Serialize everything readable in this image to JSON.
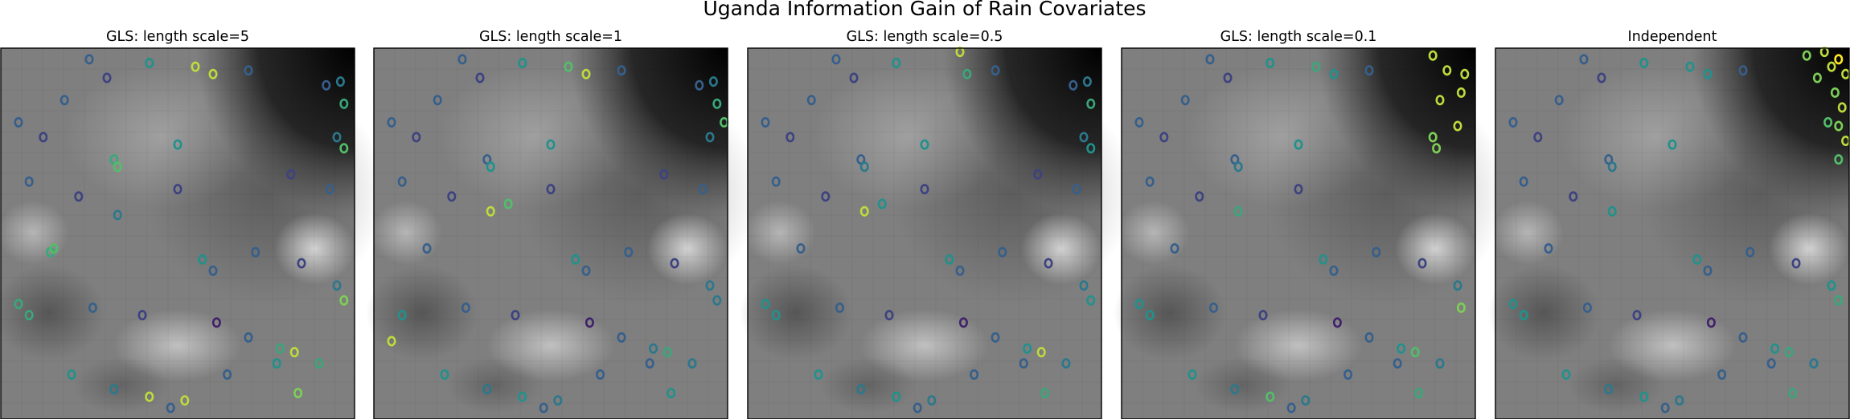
{
  "figure": {
    "title": "Uganda Information Gain of Rain Covariates"
  },
  "colormap": {
    "name": "viridis",
    "stops": [
      "#440154",
      "#3b528b",
      "#21918c",
      "#5ec962",
      "#fde725"
    ]
  },
  "chart_data": [
    {
      "type": "scatter",
      "title": "GLS: length scale=5",
      "background": "grayscale rain covariate map",
      "grid": false,
      "xlim": [
        0,
        1
      ],
      "ylim": [
        0,
        1
      ],
      "points": [
        [
          0.25,
          0.97,
          0.3
        ],
        [
          0.42,
          0.96,
          0.5
        ],
        [
          0.55,
          0.95,
          0.9
        ],
        [
          0.6,
          0.93,
          0.9
        ],
        [
          0.3,
          0.92,
          0.2
        ],
        [
          0.7,
          0.94,
          0.3
        ],
        [
          0.92,
          0.9,
          0.3
        ],
        [
          0.96,
          0.91,
          0.4
        ],
        [
          0.97,
          0.85,
          0.6
        ],
        [
          0.95,
          0.76,
          0.4
        ],
        [
          0.97,
          0.73,
          0.7
        ],
        [
          0.93,
          0.62,
          0.3
        ],
        [
          0.05,
          0.8,
          0.3
        ],
        [
          0.12,
          0.76,
          0.2
        ],
        [
          0.32,
          0.7,
          0.6
        ],
        [
          0.33,
          0.68,
          0.7
        ],
        [
          0.5,
          0.74,
          0.5
        ],
        [
          0.08,
          0.64,
          0.3
        ],
        [
          0.22,
          0.6,
          0.2
        ],
        [
          0.33,
          0.55,
          0.4
        ],
        [
          0.14,
          0.45,
          0.6
        ],
        [
          0.15,
          0.46,
          0.7
        ],
        [
          0.57,
          0.43,
          0.5
        ],
        [
          0.6,
          0.4,
          0.3
        ],
        [
          0.72,
          0.45,
          0.3
        ],
        [
          0.85,
          0.42,
          0.2
        ],
        [
          0.95,
          0.36,
          0.4
        ],
        [
          0.97,
          0.32,
          0.8
        ],
        [
          0.05,
          0.31,
          0.6
        ],
        [
          0.08,
          0.28,
          0.6
        ],
        [
          0.26,
          0.3,
          0.3
        ],
        [
          0.4,
          0.28,
          0.2
        ],
        [
          0.61,
          0.26,
          0.1
        ],
        [
          0.7,
          0.22,
          0.3
        ],
        [
          0.79,
          0.19,
          0.6
        ],
        [
          0.83,
          0.18,
          0.9
        ],
        [
          0.78,
          0.15,
          0.5
        ],
        [
          0.2,
          0.12,
          0.5
        ],
        [
          0.32,
          0.08,
          0.4
        ],
        [
          0.42,
          0.06,
          0.9
        ],
        [
          0.52,
          0.05,
          0.9
        ],
        [
          0.48,
          0.03,
          0.3
        ],
        [
          0.84,
          0.07,
          0.8
        ],
        [
          0.64,
          0.12,
          0.3
        ],
        [
          0.9,
          0.15,
          0.6
        ],
        [
          0.18,
          0.86,
          0.3
        ],
        [
          0.82,
          0.66,
          0.2
        ],
        [
          0.5,
          0.62,
          0.2
        ]
      ]
    },
    {
      "type": "scatter",
      "title": "GLS: length scale=1",
      "background": "grayscale rain covariate map",
      "grid": false,
      "xlim": [
        0,
        1
      ],
      "ylim": [
        0,
        1
      ],
      "points": [
        [
          0.25,
          0.97,
          0.3
        ],
        [
          0.42,
          0.96,
          0.5
        ],
        [
          0.55,
          0.95,
          0.7
        ],
        [
          0.6,
          0.93,
          0.9
        ],
        [
          0.3,
          0.92,
          0.2
        ],
        [
          0.7,
          0.94,
          0.3
        ],
        [
          0.92,
          0.9,
          0.3
        ],
        [
          0.96,
          0.91,
          0.4
        ],
        [
          0.97,
          0.85,
          0.6
        ],
        [
          0.95,
          0.76,
          0.4
        ],
        [
          0.99,
          0.8,
          0.7
        ],
        [
          0.93,
          0.62,
          0.3
        ],
        [
          0.05,
          0.8,
          0.3
        ],
        [
          0.12,
          0.76,
          0.2
        ],
        [
          0.32,
          0.7,
          0.3
        ],
        [
          0.33,
          0.68,
          0.5
        ],
        [
          0.5,
          0.74,
          0.5
        ],
        [
          0.08,
          0.64,
          0.3
        ],
        [
          0.22,
          0.6,
          0.2
        ],
        [
          0.33,
          0.56,
          0.9
        ],
        [
          0.38,
          0.58,
          0.7
        ],
        [
          0.15,
          0.46,
          0.3
        ],
        [
          0.57,
          0.43,
          0.5
        ],
        [
          0.6,
          0.4,
          0.3
        ],
        [
          0.72,
          0.45,
          0.3
        ],
        [
          0.85,
          0.42,
          0.2
        ],
        [
          0.95,
          0.36,
          0.4
        ],
        [
          0.97,
          0.32,
          0.4
        ],
        [
          0.05,
          0.21,
          0.9
        ],
        [
          0.08,
          0.28,
          0.5
        ],
        [
          0.26,
          0.3,
          0.3
        ],
        [
          0.4,
          0.28,
          0.2
        ],
        [
          0.61,
          0.26,
          0.1
        ],
        [
          0.7,
          0.22,
          0.3
        ],
        [
          0.79,
          0.19,
          0.4
        ],
        [
          0.83,
          0.18,
          0.6
        ],
        [
          0.78,
          0.15,
          0.3
        ],
        [
          0.2,
          0.12,
          0.5
        ],
        [
          0.32,
          0.08,
          0.4
        ],
        [
          0.42,
          0.06,
          0.5
        ],
        [
          0.52,
          0.05,
          0.4
        ],
        [
          0.48,
          0.03,
          0.3
        ],
        [
          0.84,
          0.07,
          0.5
        ],
        [
          0.64,
          0.12,
          0.3
        ],
        [
          0.9,
          0.15,
          0.4
        ],
        [
          0.18,
          0.86,
          0.3
        ],
        [
          0.82,
          0.66,
          0.2
        ],
        [
          0.5,
          0.62,
          0.2
        ]
      ]
    },
    {
      "type": "scatter",
      "title": "GLS: length scale=0.5",
      "background": "grayscale rain covariate map",
      "grid": false,
      "xlim": [
        0,
        1
      ],
      "ylim": [
        0,
        1
      ],
      "points": [
        [
          0.25,
          0.97,
          0.3
        ],
        [
          0.42,
          0.96,
          0.5
        ],
        [
          0.6,
          0.99,
          0.9
        ],
        [
          0.62,
          0.93,
          0.6
        ],
        [
          0.3,
          0.92,
          0.2
        ],
        [
          0.7,
          0.94,
          0.3
        ],
        [
          0.92,
          0.9,
          0.3
        ],
        [
          0.96,
          0.91,
          0.4
        ],
        [
          0.97,
          0.85,
          0.6
        ],
        [
          0.95,
          0.76,
          0.4
        ],
        [
          0.97,
          0.73,
          0.5
        ],
        [
          0.93,
          0.62,
          0.3
        ],
        [
          0.05,
          0.8,
          0.3
        ],
        [
          0.12,
          0.76,
          0.2
        ],
        [
          0.32,
          0.7,
          0.3
        ],
        [
          0.33,
          0.68,
          0.4
        ],
        [
          0.5,
          0.74,
          0.5
        ],
        [
          0.08,
          0.64,
          0.3
        ],
        [
          0.22,
          0.6,
          0.2
        ],
        [
          0.33,
          0.56,
          0.9
        ],
        [
          0.38,
          0.58,
          0.5
        ],
        [
          0.15,
          0.46,
          0.3
        ],
        [
          0.57,
          0.43,
          0.5
        ],
        [
          0.6,
          0.4,
          0.3
        ],
        [
          0.72,
          0.45,
          0.3
        ],
        [
          0.85,
          0.42,
          0.2
        ],
        [
          0.95,
          0.36,
          0.4
        ],
        [
          0.97,
          0.32,
          0.5
        ],
        [
          0.05,
          0.31,
          0.5
        ],
        [
          0.08,
          0.28,
          0.5
        ],
        [
          0.26,
          0.3,
          0.3
        ],
        [
          0.4,
          0.28,
          0.2
        ],
        [
          0.61,
          0.26,
          0.1
        ],
        [
          0.7,
          0.22,
          0.3
        ],
        [
          0.79,
          0.19,
          0.5
        ],
        [
          0.83,
          0.18,
          0.9
        ],
        [
          0.78,
          0.15,
          0.3
        ],
        [
          0.2,
          0.12,
          0.5
        ],
        [
          0.32,
          0.08,
          0.4
        ],
        [
          0.42,
          0.06,
          0.5
        ],
        [
          0.52,
          0.05,
          0.4
        ],
        [
          0.48,
          0.03,
          0.3
        ],
        [
          0.84,
          0.07,
          0.6
        ],
        [
          0.64,
          0.12,
          0.3
        ],
        [
          0.9,
          0.15,
          0.4
        ],
        [
          0.18,
          0.86,
          0.3
        ],
        [
          0.82,
          0.66,
          0.2
        ],
        [
          0.5,
          0.62,
          0.2
        ]
      ]
    },
    {
      "type": "scatter",
      "title": "GLS: length scale=0.1",
      "background": "grayscale rain covariate map",
      "grid": false,
      "xlim": [
        0,
        1
      ],
      "ylim": [
        0,
        1
      ],
      "points": [
        [
          0.25,
          0.97,
          0.3
        ],
        [
          0.42,
          0.96,
          0.5
        ],
        [
          0.55,
          0.95,
          0.6
        ],
        [
          0.6,
          0.93,
          0.5
        ],
        [
          0.3,
          0.92,
          0.2
        ],
        [
          0.7,
          0.94,
          0.3
        ],
        [
          0.88,
          0.98,
          0.9
        ],
        [
          0.92,
          0.94,
          0.9
        ],
        [
          0.97,
          0.93,
          0.9
        ],
        [
          0.9,
          0.86,
          0.9
        ],
        [
          0.96,
          0.88,
          0.9
        ],
        [
          0.95,
          0.79,
          0.9
        ],
        [
          0.88,
          0.76,
          0.8
        ],
        [
          0.89,
          0.73,
          0.8
        ],
        [
          0.05,
          0.8,
          0.3
        ],
        [
          0.12,
          0.76,
          0.2
        ],
        [
          0.32,
          0.7,
          0.3
        ],
        [
          0.33,
          0.68,
          0.4
        ],
        [
          0.5,
          0.74,
          0.5
        ],
        [
          0.08,
          0.64,
          0.3
        ],
        [
          0.22,
          0.6,
          0.2
        ],
        [
          0.33,
          0.56,
          0.6
        ],
        [
          0.15,
          0.46,
          0.3
        ],
        [
          0.57,
          0.43,
          0.5
        ],
        [
          0.6,
          0.4,
          0.3
        ],
        [
          0.72,
          0.45,
          0.3
        ],
        [
          0.85,
          0.42,
          0.2
        ],
        [
          0.95,
          0.36,
          0.4
        ],
        [
          0.96,
          0.3,
          0.8
        ],
        [
          0.05,
          0.31,
          0.5
        ],
        [
          0.08,
          0.28,
          0.5
        ],
        [
          0.26,
          0.3,
          0.3
        ],
        [
          0.4,
          0.28,
          0.2
        ],
        [
          0.61,
          0.26,
          0.1
        ],
        [
          0.7,
          0.22,
          0.3
        ],
        [
          0.79,
          0.19,
          0.5
        ],
        [
          0.83,
          0.18,
          0.7
        ],
        [
          0.78,
          0.15,
          0.3
        ],
        [
          0.2,
          0.12,
          0.5
        ],
        [
          0.32,
          0.08,
          0.4
        ],
        [
          0.42,
          0.06,
          0.7
        ],
        [
          0.52,
          0.05,
          0.4
        ],
        [
          0.48,
          0.03,
          0.3
        ],
        [
          0.84,
          0.07,
          0.6
        ],
        [
          0.64,
          0.12,
          0.3
        ],
        [
          0.9,
          0.15,
          0.4
        ],
        [
          0.18,
          0.86,
          0.3
        ],
        [
          0.5,
          0.62,
          0.2
        ]
      ]
    },
    {
      "type": "scatter",
      "title": "Independent",
      "background": "grayscale rain covariate map",
      "grid": false,
      "xlim": [
        0,
        1
      ],
      "ylim": [
        0,
        1
      ],
      "points": [
        [
          0.25,
          0.97,
          0.3
        ],
        [
          0.42,
          0.96,
          0.5
        ],
        [
          0.55,
          0.95,
          0.5
        ],
        [
          0.6,
          0.93,
          0.5
        ],
        [
          0.3,
          0.92,
          0.2
        ],
        [
          0.7,
          0.94,
          0.3
        ],
        [
          0.88,
          0.98,
          0.8
        ],
        [
          0.93,
          0.99,
          0.9
        ],
        [
          0.97,
          0.97,
          1.0
        ],
        [
          0.95,
          0.95,
          0.9
        ],
        [
          0.91,
          0.92,
          0.8
        ],
        [
          0.99,
          0.93,
          0.9
        ],
        [
          0.96,
          0.88,
          0.8
        ],
        [
          0.98,
          0.84,
          0.9
        ],
        [
          0.94,
          0.8,
          0.7
        ],
        [
          0.97,
          0.79,
          0.8
        ],
        [
          0.99,
          0.75,
          0.9
        ],
        [
          0.97,
          0.7,
          0.7
        ],
        [
          0.05,
          0.8,
          0.3
        ],
        [
          0.12,
          0.76,
          0.2
        ],
        [
          0.32,
          0.7,
          0.3
        ],
        [
          0.33,
          0.68,
          0.4
        ],
        [
          0.5,
          0.74,
          0.5
        ],
        [
          0.08,
          0.64,
          0.3
        ],
        [
          0.22,
          0.6,
          0.2
        ],
        [
          0.33,
          0.56,
          0.5
        ],
        [
          0.15,
          0.46,
          0.3
        ],
        [
          0.57,
          0.43,
          0.5
        ],
        [
          0.6,
          0.4,
          0.3
        ],
        [
          0.72,
          0.45,
          0.3
        ],
        [
          0.85,
          0.42,
          0.2
        ],
        [
          0.95,
          0.36,
          0.5
        ],
        [
          0.97,
          0.32,
          0.6
        ],
        [
          0.05,
          0.31,
          0.5
        ],
        [
          0.08,
          0.28,
          0.5
        ],
        [
          0.26,
          0.3,
          0.3
        ],
        [
          0.4,
          0.28,
          0.2
        ],
        [
          0.61,
          0.26,
          0.1
        ],
        [
          0.7,
          0.22,
          0.3
        ],
        [
          0.79,
          0.19,
          0.5
        ],
        [
          0.83,
          0.18,
          0.6
        ],
        [
          0.78,
          0.15,
          0.3
        ],
        [
          0.2,
          0.12,
          0.5
        ],
        [
          0.32,
          0.08,
          0.4
        ],
        [
          0.42,
          0.06,
          0.5
        ],
        [
          0.52,
          0.05,
          0.4
        ],
        [
          0.48,
          0.03,
          0.3
        ],
        [
          0.84,
          0.07,
          0.6
        ],
        [
          0.64,
          0.12,
          0.3
        ],
        [
          0.9,
          0.15,
          0.4
        ],
        [
          0.18,
          0.86,
          0.3
        ]
      ]
    }
  ]
}
